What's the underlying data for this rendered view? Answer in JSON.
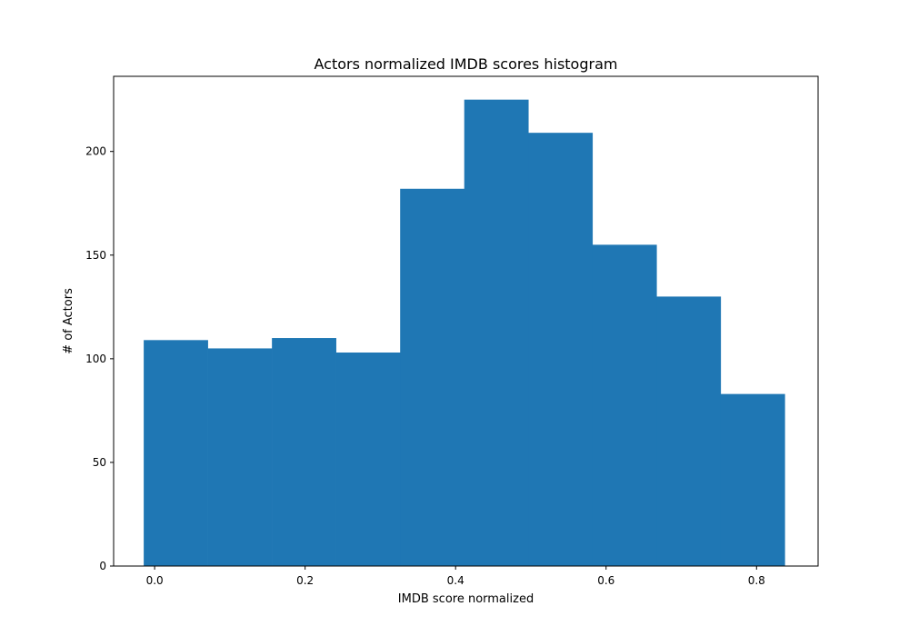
{
  "chart_data": {
    "type": "bar",
    "title": "Actors normalized IMDB scores histogram",
    "xlabel": "IMDB score normalized",
    "ylabel": "# of Actors",
    "xlim": [
      -0.0545,
      0.8818
    ],
    "ylim": [
      0,
      236.25
    ],
    "bin_edges": [
      -0.0145,
      0.0707,
      0.1559,
      0.2411,
      0.3263,
      0.4115,
      0.4967,
      0.5819,
      0.6671,
      0.7523,
      0.8375
    ],
    "values": [
      109,
      105,
      110,
      103,
      182,
      225,
      209,
      155,
      130,
      83
    ],
    "xticks": [
      0.0,
      0.2,
      0.4,
      0.6,
      0.8
    ],
    "xtick_labels": [
      "0.0",
      "0.2",
      "0.4",
      "0.6",
      "0.8"
    ],
    "yticks": [
      0,
      50,
      100,
      150,
      200
    ],
    "ytick_labels": [
      "0",
      "50",
      "100",
      "150",
      "200"
    ],
    "bar_color": "#1f77b4",
    "grid": false
  }
}
